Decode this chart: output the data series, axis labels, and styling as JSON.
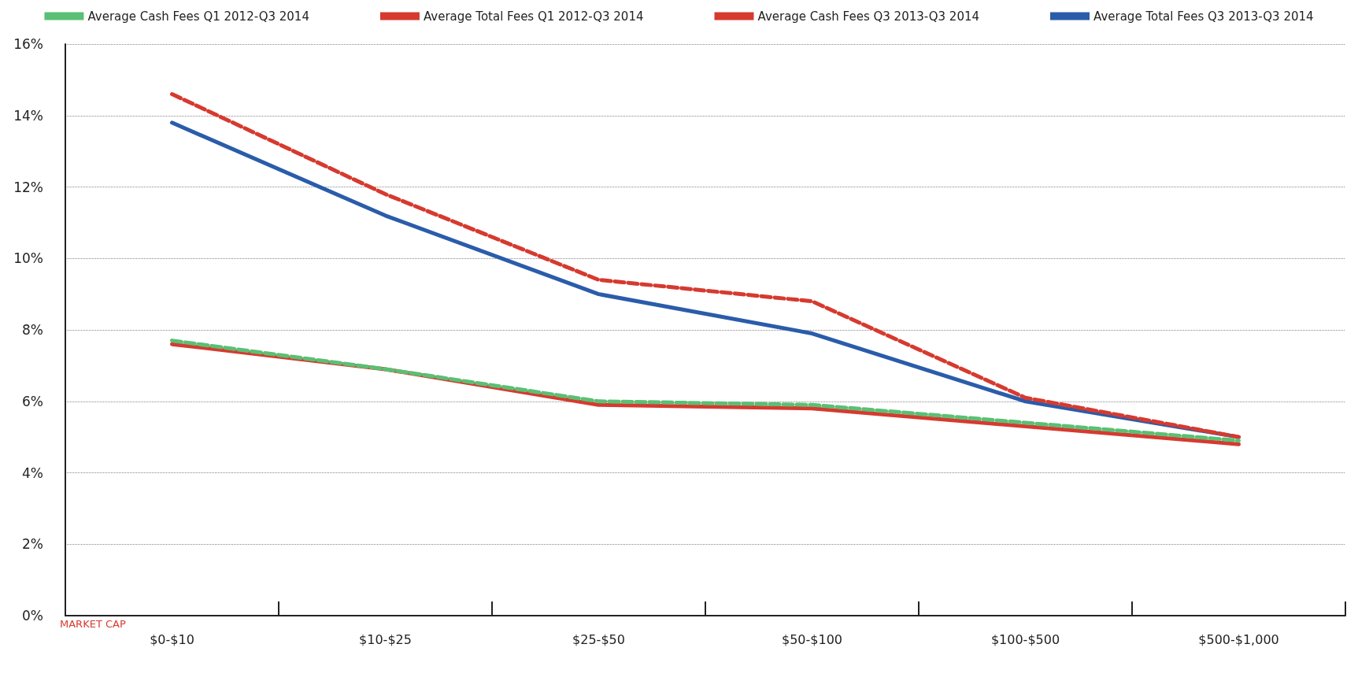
{
  "chart_data": {
    "type": "line",
    "xlabel": "MARKET CAP",
    "categories": [
      "$0-$10",
      "$10-$25",
      "$25-$50",
      "$50-$100",
      "$100-$500",
      "$500-$1,000"
    ],
    "series": [
      {
        "name": "Average Cash Fees Q1 2012-Q3 2014",
        "color": "#5bbf74",
        "line_style": "dashed",
        "values": [
          7.7,
          6.9,
          6.0,
          5.9,
          5.4,
          4.9
        ]
      },
      {
        "name": "Average Total Fees Q1 2012-Q3 2014",
        "color": "#d63a2f",
        "line_style": "dashed",
        "values": [
          14.6,
          11.8,
          9.4,
          8.8,
          6.1,
          5.0
        ]
      },
      {
        "name": "Average Cash Fees Q3 2013-Q3 2014",
        "color": "#d63a2f",
        "line_style": "solid",
        "values": [
          7.6,
          6.9,
          5.9,
          5.8,
          5.3,
          4.8
        ]
      },
      {
        "name": "Average Total Fees Q3 2013-Q3 2014",
        "color": "#2a5caa",
        "line_style": "solid",
        "values": [
          13.8,
          11.2,
          9.0,
          7.9,
          6.0,
          5.0
        ]
      }
    ],
    "ylim": [
      0,
      16
    ],
    "yticks": [
      {
        "value": 0,
        "label": "0%"
      },
      {
        "value": 2,
        "label": "2%"
      },
      {
        "value": 4,
        "label": "4%"
      },
      {
        "value": 6,
        "label": "6%"
      },
      {
        "value": 8,
        "label": "8%"
      },
      {
        "value": 10,
        "label": "10%"
      },
      {
        "value": 12,
        "label": "12%"
      },
      {
        "value": 14,
        "label": "14%"
      },
      {
        "value": 16,
        "label": "16%"
      }
    ],
    "grid": "y",
    "legend": "top",
    "marker": "none"
  }
}
